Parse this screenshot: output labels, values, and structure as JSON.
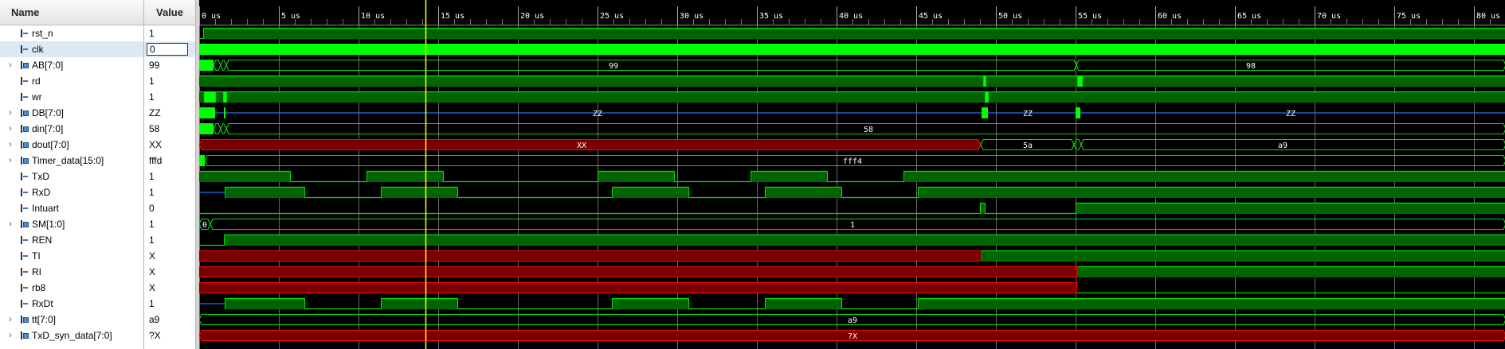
{
  "headers": {
    "name": "Name",
    "value": "Value"
  },
  "timeline": {
    "unit": "us",
    "labels": [
      "0 us",
      "5 us",
      "10 us",
      "15 us",
      "20 us",
      "25 us",
      "30 us",
      "35 us",
      "40 us",
      "45 us",
      "50 us",
      "55 us",
      "60 us",
      "65 us",
      "70 us",
      "75 us",
      "80 us"
    ],
    "cursor_us": 14.2,
    "view_end_us": 82
  },
  "signals": [
    {
      "name": "rst_n",
      "value": "1",
      "bus": false,
      "selected": false
    },
    {
      "name": "clk",
      "value": "0",
      "bus": false,
      "selected": true
    },
    {
      "name": "AB[7:0]",
      "value": "99",
      "bus": true,
      "selected": false
    },
    {
      "name": "rd",
      "value": "1",
      "bus": false,
      "selected": false
    },
    {
      "name": "wr",
      "value": "1",
      "bus": false,
      "selected": false
    },
    {
      "name": "DB[7:0]",
      "value": "ZZ",
      "bus": true,
      "selected": false
    },
    {
      "name": "din[7:0]",
      "value": "58",
      "bus": true,
      "selected": false
    },
    {
      "name": "dout[7:0]",
      "value": "XX",
      "bus": true,
      "selected": false
    },
    {
      "name": "Timer_data[15:0]",
      "value": "fffd",
      "bus": true,
      "selected": false
    },
    {
      "name": "TxD",
      "value": "1",
      "bus": false,
      "selected": false
    },
    {
      "name": "RxD",
      "value": "1",
      "bus": false,
      "selected": false
    },
    {
      "name": "Intuart",
      "value": "0",
      "bus": false,
      "selected": false
    },
    {
      "name": "SM[1:0]",
      "value": "1",
      "bus": true,
      "selected": false
    },
    {
      "name": "REN",
      "value": "1",
      "bus": false,
      "selected": false
    },
    {
      "name": "TI",
      "value": "X",
      "bus": false,
      "selected": false
    },
    {
      "name": "RI",
      "value": "X",
      "bus": false,
      "selected": false
    },
    {
      "name": "rb8",
      "value": "X",
      "bus": false,
      "selected": false
    },
    {
      "name": "RxDt",
      "value": "1",
      "bus": false,
      "selected": false
    },
    {
      "name": "tt[7:0]",
      "value": "a9",
      "bus": true,
      "selected": false
    },
    {
      "name": "TxD_syn_data[7:0]",
      "value": "?X",
      "bus": true,
      "selected": false
    }
  ],
  "bus_labels": {
    "AB[7:0]": [
      {
        "t": 26,
        "text": "99"
      },
      {
        "t": 66,
        "text": "98"
      }
    ],
    "DB[7:0]": [
      {
        "t": 25,
        "text": "ZZ"
      },
      {
        "t": 52,
        "text": "ZZ"
      },
      {
        "t": 68.5,
        "text": "ZZ"
      }
    ],
    "din[7:0]": [
      {
        "t": 42,
        "text": "58"
      }
    ],
    "dout[7:0]": [
      {
        "t": 24,
        "text": "XX"
      },
      {
        "t": 52,
        "text": "5a"
      },
      {
        "t": 68,
        "text": "a9"
      }
    ],
    "Timer_data[15:0]": [
      {
        "t": 41,
        "text": "fff4"
      }
    ],
    "SM[1:0]": [
      {
        "t": 0.35,
        "text": "0"
      },
      {
        "t": 41,
        "text": "1"
      }
    ],
    "tt[7:0]": [
      {
        "t": 41,
        "text": "a9"
      }
    ],
    "TxD_syn_data[7:0]": [
      {
        "t": 41,
        "text": "?X"
      }
    ]
  },
  "colors": {
    "grid": "#6b6b6b",
    "wave": "#00e000",
    "fill": "#006400",
    "bright": "#00ff00",
    "x": "#ff0000",
    "xfill": "#7a0000",
    "z": "#2b6bff",
    "cursor": "#ffff00",
    "text": "#ffffff"
  }
}
